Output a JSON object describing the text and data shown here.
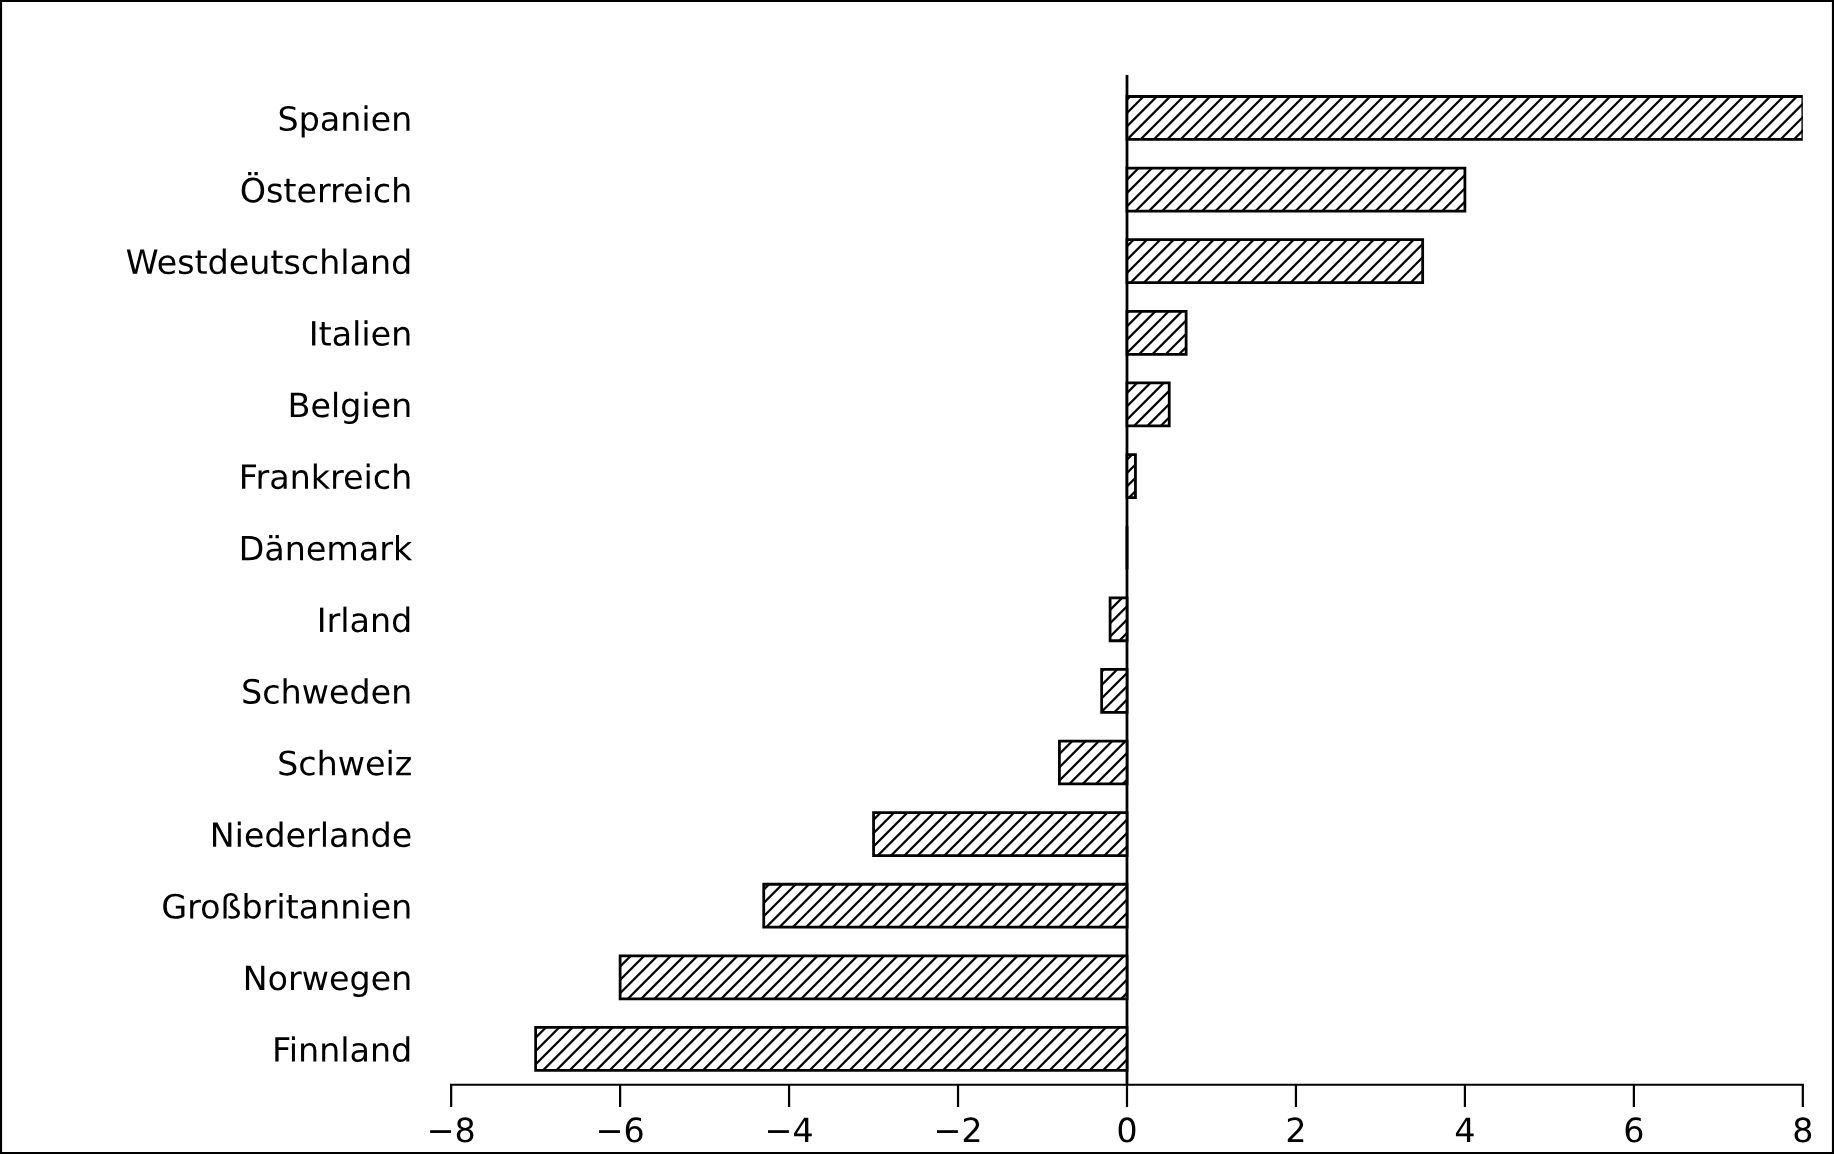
{
  "chart_data": {
    "type": "bar",
    "orientation": "horizontal",
    "categories": [
      "Spanien",
      "Österreich",
      "Westdeutschland",
      "Italien",
      "Belgien",
      "Frankreich",
      "Dänemark",
      "Irland",
      "Schweden",
      "Schweiz",
      "Niederlande",
      "Großbritannien",
      "Norwegen",
      "Finnland"
    ],
    "values": [
      8.0,
      4.0,
      3.5,
      0.7,
      0.5,
      0.1,
      0,
      -0.2,
      -0.3,
      -0.8,
      -3.0,
      -4.3,
      -6.0,
      -7.0
    ],
    "color": "#000000",
    "xlim": [
      -8,
      8
    ],
    "xticks": [
      {
        "value": -8,
        "label": "−8"
      },
      {
        "value": -6,
        "label": "−6"
      },
      {
        "value": -4,
        "label": "−4"
      },
      {
        "value": -2,
        "label": "−2"
      },
      0,
      2,
      4,
      6,
      8
    ],
    "ref_lines": [
      {
        "axis": "x",
        "value": 0,
        "color": "#000000"
      }
    ],
    "grid": false,
    "legend": false
  }
}
